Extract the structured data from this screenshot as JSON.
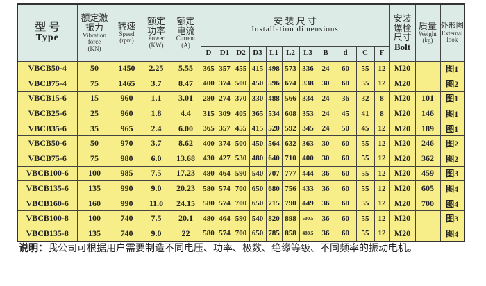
{
  "header": {
    "type_zh": "型 号",
    "type_en": "Type",
    "force_zh": "额定激振力",
    "force_en": "Vibration force",
    "force_unit": "(KN)",
    "speed_zh": "转速",
    "speed_en": "Speed",
    "speed_unit": "(rpm)",
    "power_zh": "额定功率",
    "power_en": "Power",
    "power_unit": "(KW)",
    "current_zh": "额定电流",
    "current_en": "Current",
    "current_unit": "(A)",
    "install_zh": "安 装 尺 寸",
    "install_en": "Installation dimensions",
    "bolt_zh": "安装螺栓尺寸",
    "bolt_en": "Bolt",
    "weight_zh": "质量",
    "weight_en": "Weight",
    "weight_unit": "(kg)",
    "look_zh": "外形图",
    "look_en": "External look",
    "dims": [
      "D",
      "D1",
      "D2",
      "D3",
      "L1",
      "L2",
      "L3",
      "B",
      "d",
      "C",
      "F"
    ]
  },
  "rows": [
    [
      "VBCB50-4",
      "50",
      "1450",
      "2.25",
      "5.55",
      "365",
      "357",
      "455",
      "415",
      "498",
      "573",
      "336",
      "24",
      "60",
      "55",
      "12",
      "M20",
      "",
      "图1"
    ],
    [
      "VBCB75-4",
      "75",
      "1465",
      "3.7",
      "8.47",
      "400",
      "374",
      "500",
      "450",
      "596",
      "674",
      "338",
      "30",
      "60",
      "55",
      "12",
      "M20",
      "",
      "图2"
    ],
    [
      "VBCB15-6",
      "15",
      "960",
      "1.1",
      "3.01",
      "280",
      "274",
      "370",
      "330",
      "488",
      "566",
      "334",
      "24",
      "36",
      "32",
      "8",
      "M20",
      "101",
      "图1"
    ],
    [
      "VBCB25-6",
      "25",
      "960",
      "1.8",
      "4.4",
      "315",
      "309",
      "405",
      "365",
      "534",
      "608",
      "353",
      "24",
      "45",
      "41",
      "8",
      "M20",
      "146",
      "图1"
    ],
    [
      "VBCB35-6",
      "35",
      "965",
      "2.4",
      "6.00",
      "365",
      "357",
      "455",
      "415",
      "520",
      "592",
      "345",
      "24",
      "50",
      "45",
      "12",
      "M20",
      "189",
      "图1"
    ],
    [
      "VBCB50-6",
      "50",
      "970",
      "3.7",
      "8.62",
      "400",
      "374",
      "500",
      "450",
      "564",
      "632",
      "363",
      "30",
      "60",
      "55",
      "12",
      "M20",
      "246",
      "图2"
    ],
    [
      "VBCB75-6",
      "75",
      "980",
      "6.0",
      "13.68",
      "430",
      "427",
      "530",
      "480",
      "640",
      "710",
      "400",
      "30",
      "60",
      "55",
      "12",
      "M20",
      "362",
      "图2"
    ],
    [
      "VBCB100-6",
      "100",
      "985",
      "7.5",
      "17.23",
      "480",
      "464",
      "590",
      "540",
      "707",
      "777",
      "444",
      "36",
      "60",
      "55",
      "12",
      "M20",
      "459",
      "图3"
    ],
    [
      "VBCB135-6",
      "135",
      "990",
      "9.0",
      "20.23",
      "580",
      "574",
      "700",
      "650",
      "680",
      "756",
      "433",
      "36",
      "60",
      "55",
      "12",
      "M20",
      "605",
      "图4"
    ],
    [
      "VBCB160-6",
      "160",
      "990",
      "11.0",
      "24.15",
      "580",
      "574",
      "700",
      "650",
      "715",
      "790",
      "449",
      "36",
      "60",
      "55",
      "12",
      "M20",
      "700",
      "图4"
    ],
    [
      "VBCB100-8",
      "100",
      "740",
      "7.5",
      "20.1",
      "480",
      "464",
      "590",
      "540",
      "820",
      "898",
      "500.5",
      "36",
      "60",
      "55",
      "12",
      "M20",
      "",
      "图3"
    ],
    [
      "VBCB135-8",
      "135",
      "740",
      "9.0",
      "22",
      "580",
      "574",
      "700",
      "650",
      "785",
      "858",
      "483.5",
      "36",
      "60",
      "55",
      "12",
      "M20",
      "",
      "图4"
    ]
  ],
  "note": {
    "label": "说明：",
    "text": "我公司可根据用户需要制造不同电压、功率、极数、绝缘等级、不同频率的振动电机。"
  },
  "colors": {
    "header_bg": "#dcebe6",
    "row_bg": "#f7ee8a"
  }
}
